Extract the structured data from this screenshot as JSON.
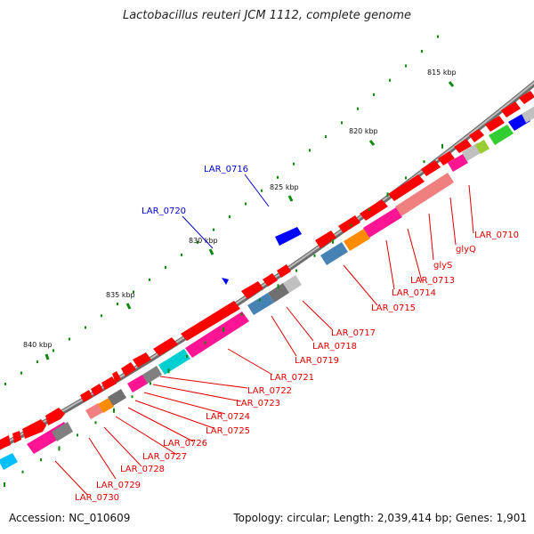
{
  "title": "Lactobacillus reuteri JCM 1112, complete genome",
  "accession_text": "Accession: NC_010609",
  "summary_text": "Topology: circular; Length: 2,039,414 bp; Genes: 1,901",
  "ticks": [
    "815 kbp",
    "820 kbp",
    "825 kbp",
    "830 kbp",
    "835 kbp",
    "840 kbp"
  ],
  "labels_red": [
    "LAR_0710",
    "glyQ",
    "glyS",
    "LAR_0713",
    "LAR_0714",
    "LAR_0715",
    "LAR_0717",
    "LAR_0718",
    "LAR_0719",
    "LAR_0721",
    "LAR_0722",
    "LAR_0723",
    "LAR_0724",
    "LAR_0725",
    "LAR_0726",
    "LAR_0727",
    "LAR_0728",
    "LAR_0729",
    "LAR_0730"
  ],
  "labels_blue": [
    "LAR_0716",
    "LAR_0720"
  ],
  "colors": {
    "forward_gene": "#ff0000",
    "cog_pink": "#ff1493",
    "cog_salmon": "#f08080",
    "cog_orange": "#ff8c00",
    "cog_blue": "#4682b4",
    "cog_gray": "#808080",
    "cog_cyan": "#00ced1",
    "cog_green": "#32cd32",
    "cog_olive": "#9acd32",
    "cog_navy": "#0000ff",
    "label_red": "#e00000",
    "label_blue": "#0000d0",
    "gc_tick": "#0a8a0a"
  }
}
